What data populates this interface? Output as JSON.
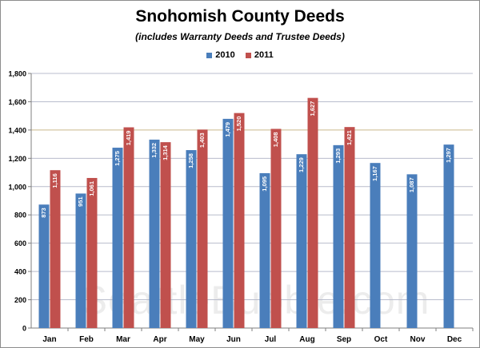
{
  "chart_data": {
    "type": "bar",
    "title": "Snohomish County Deeds",
    "subtitle": "(includes Warranty Deeds and Trustee Deeds)",
    "categories": [
      "Jan",
      "Feb",
      "Mar",
      "Apr",
      "May",
      "Jun",
      "Jul",
      "Aug",
      "Sep",
      "Oct",
      "Nov",
      "Dec"
    ],
    "series": [
      {
        "name": "2010",
        "color": "#4a7ebb",
        "values": [
          873,
          951,
          1275,
          1332,
          1258,
          1479,
          1095,
          1229,
          1293,
          1167,
          1087,
          1297
        ],
        "labels": [
          "873",
          "951",
          "1,275",
          "1,332",
          "1,258",
          "1,479",
          "1,095",
          "1,229",
          "1,293",
          "1,167",
          "1,087",
          "1,297"
        ]
      },
      {
        "name": "2011",
        "color": "#c0504d",
        "values": [
          1116,
          1061,
          1419,
          1314,
          1403,
          1520,
          1408,
          1627,
          1421,
          null,
          null,
          null
        ],
        "labels": [
          "1,116",
          "1,061",
          "1,419",
          "1,314",
          "1,403",
          "1,520",
          "1,408",
          "1,627",
          "1,421",
          "",
          "",
          ""
        ]
      }
    ],
    "ylim": [
      0,
      1800
    ],
    "yticks": [
      0,
      200,
      400,
      600,
      800,
      1000,
      1200,
      1400,
      1600,
      1800
    ],
    "ytick_labels": [
      "0",
      "200",
      "400",
      "600",
      "800",
      "1,000",
      "1,200",
      "1,400",
      "1,600",
      "1,800"
    ],
    "xlabel": "",
    "ylabel": "",
    "grid": true,
    "gridline_colors": {
      "default": "#b8bccc",
      "highlight": "#c9b98a"
    },
    "highlight_gridlines": [
      1400
    ],
    "legend_position": "top-center"
  },
  "watermark": "SeattleBubble.com"
}
